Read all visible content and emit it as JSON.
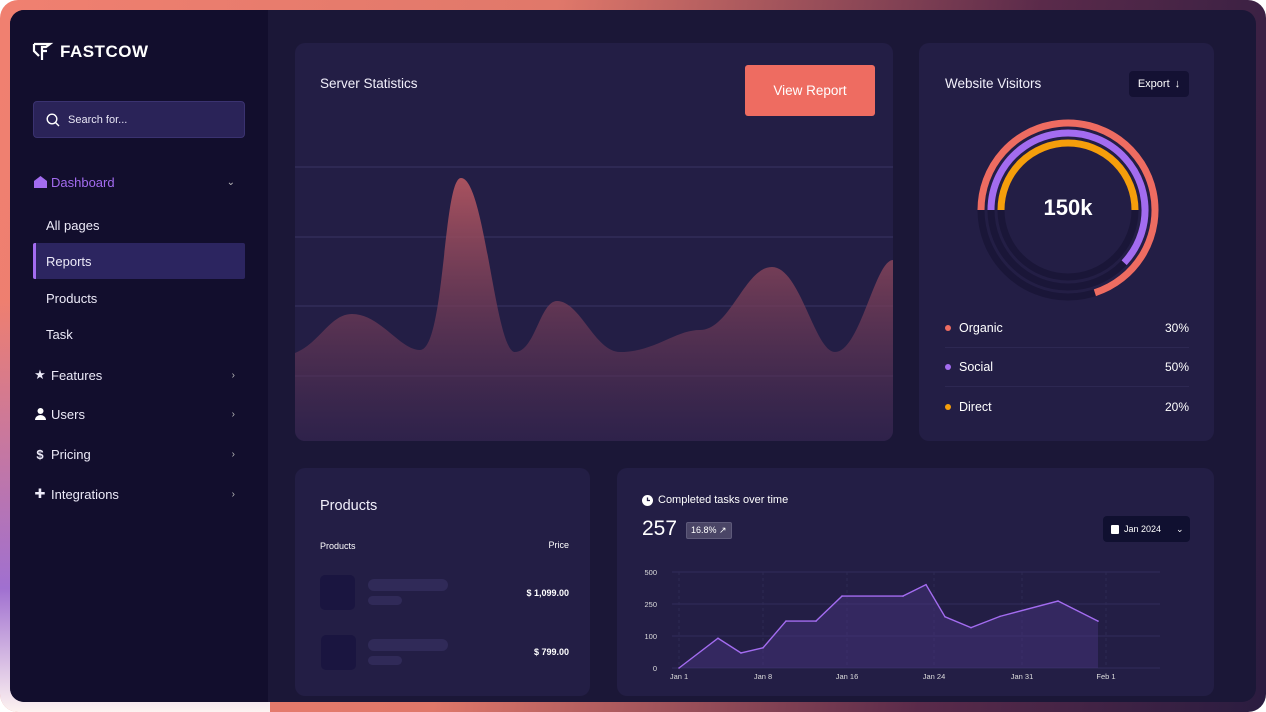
{
  "brand": {
    "name": "FASTCOW"
  },
  "search": {
    "placeholder": "Search for..."
  },
  "sidebar": {
    "items": [
      {
        "label": "Dashboard",
        "icon": "home-icon"
      },
      {
        "label": "All pages"
      },
      {
        "label": "Reports"
      },
      {
        "label": "Products"
      },
      {
        "label": "Task"
      },
      {
        "label": "Features",
        "icon": "star-icon"
      },
      {
        "label": "Users",
        "icon": "user-icon"
      },
      {
        "label": "Pricing",
        "icon": "dollar-icon"
      },
      {
        "label": "Integrations",
        "icon": "puzzle-icon"
      }
    ]
  },
  "server": {
    "title": "Server Statistics",
    "button": "View Report"
  },
  "visitors": {
    "title": "Website Visitors",
    "export": "Export",
    "total": "150k",
    "legend": [
      {
        "label": "Organic",
        "pct": "30%",
        "color": "#ee6c61"
      },
      {
        "label": "Social",
        "pct": "50%",
        "color": "#a36cf0"
      },
      {
        "label": "Direct",
        "pct": "20%",
        "color": "#f59e0b"
      }
    ]
  },
  "products": {
    "title": "Products",
    "col_product": "Products",
    "col_price": "Price",
    "rows": [
      {
        "price": "$ 1,099.00"
      },
      {
        "price": "$ 799.00"
      }
    ]
  },
  "tasks": {
    "title": "Completed tasks over time",
    "value": "257",
    "change": "16.8% ↗",
    "period": "Jan 2024"
  },
  "chart_data": {
    "type": "area",
    "yticks": [
      "0",
      "100",
      "250",
      "500"
    ],
    "xticks": [
      "Jan 1",
      "Jan 8",
      "Jan 16",
      "Jan 24",
      "Jan 31",
      "Feb 1"
    ],
    "values": [
      0,
      93,
      47,
      63,
      170,
      170,
      312,
      312,
      401,
      190,
      139,
      192,
      273,
      170
    ],
    "color": "#a36cf0"
  }
}
